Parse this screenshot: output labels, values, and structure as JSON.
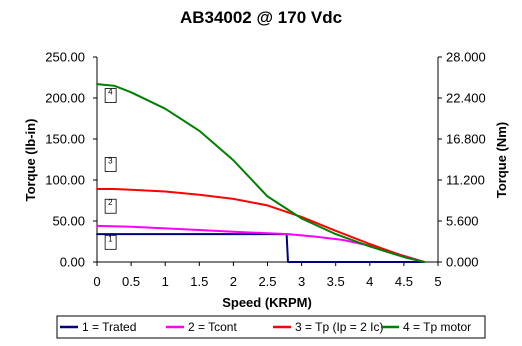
{
  "chart_data": {
    "type": "line",
    "title": "AB34002 @ 170 Vdc",
    "xlabel": "Speed (KRPM)",
    "ylabel": "Torque (lb-in)",
    "y2label": "Torque (Nm)",
    "xlim": [
      0,
      5
    ],
    "ylim": [
      0,
      250
    ],
    "y2lim": [
      0,
      28
    ],
    "x_ticks": [
      "0",
      "0.5",
      "1",
      "1.5",
      "2",
      "2.5",
      "3",
      "3.5",
      "4",
      "4.5",
      "5"
    ],
    "y_ticks": [
      "0.00",
      "50.00",
      "100.00",
      "150.00",
      "200.00",
      "250.00"
    ],
    "y2_ticks": [
      "0.000",
      "5.600",
      "11.200",
      "16.800",
      "22.400",
      "28.000"
    ],
    "grid": false,
    "legend_position": "bottom",
    "series": [
      {
        "name": "1 = Trated",
        "color": "#000080",
        "box_label": "1",
        "box_at": [
          0.2,
          24
        ],
        "x": [
          0,
          2.78,
          2.8,
          4.8
        ],
        "y": [
          34,
          34,
          0,
          0
        ]
      },
      {
        "name": "2 = Tcont",
        "color": "#ff00ff",
        "box_label": "2",
        "box_at": [
          0.2,
          68
        ],
        "x": [
          0,
          0.5,
          1,
          1.5,
          2,
          2.5,
          2.8,
          3.2,
          3.6,
          4.0,
          4.4,
          4.8
        ],
        "y": [
          44,
          43,
          41,
          39,
          37,
          35,
          34,
          31,
          27,
          20,
          10,
          0
        ]
      },
      {
        "name": "3 = Tp (Ip = 2 Ic)",
        "color": "#ff0000",
        "box_label": "3",
        "box_at": [
          0.2,
          119
        ],
        "x": [
          0,
          0.25,
          0.5,
          1,
          1.5,
          2,
          2.5,
          3,
          3.5,
          4,
          4.5,
          4.8
        ],
        "y": [
          89,
          89,
          88,
          86,
          82,
          77,
          69,
          55,
          38,
          22,
          7,
          0
        ]
      },
      {
        "name": "4 = Tp motor",
        "color": "#008000",
        "box_label": "4",
        "box_at": [
          0.2,
          203
        ],
        "x": [
          0,
          0.25,
          0.5,
          1,
          1.5,
          2,
          2.5,
          3,
          3.5,
          4,
          4.5,
          4.8
        ],
        "y": [
          217,
          215,
          207,
          187,
          160,
          124,
          80,
          53,
          34,
          19,
          6,
          0
        ]
      }
    ]
  }
}
